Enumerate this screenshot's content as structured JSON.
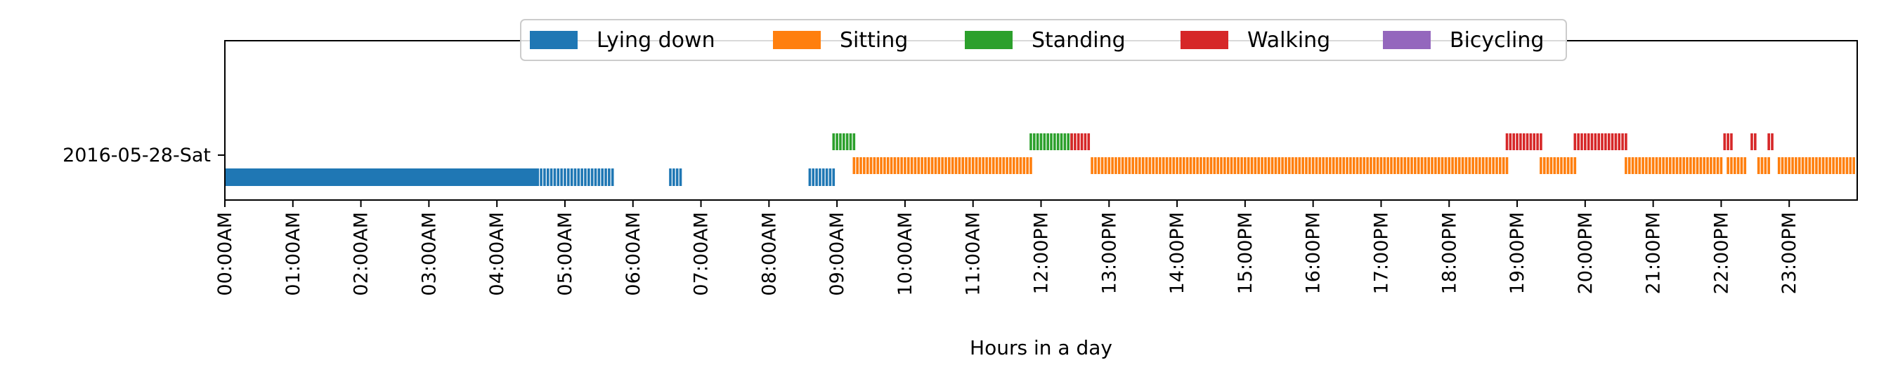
{
  "chart_data": {
    "type": "bar",
    "title": "",
    "xlabel": "Hours in a day",
    "ylabel": "",
    "y_categories": [
      "2016-05-28-Sat"
    ],
    "xlim_hours": [
      0,
      24
    ],
    "x_tick_labels": [
      "00:00AM",
      "01:00AM",
      "02:00AM",
      "03:00AM",
      "04:00AM",
      "05:00AM",
      "06:00AM",
      "07:00AM",
      "08:00AM",
      "09:00AM",
      "10:00AM",
      "11:00AM",
      "12:00PM",
      "13:00PM",
      "14:00PM",
      "15:00PM",
      "16:00PM",
      "17:00PM",
      "18:00PM",
      "19:00PM",
      "20:00PM",
      "21:00PM",
      "22:00PM",
      "23:00PM"
    ],
    "legend_placement": "upper-center",
    "grid": false,
    "series": [
      {
        "name": "Lying down",
        "color": "#1f77b4",
        "intervals": [
          [
            0.0,
            4.6
          ]
        ],
        "ticks": [
          [
            4.6,
            5.7
          ],
          [
            6.55,
            6.7
          ],
          [
            8.6,
            8.95
          ]
        ]
      },
      {
        "name": "Sitting",
        "color": "#ff7f0e",
        "intervals": [],
        "ticks": [
          [
            9.25,
            11.85
          ],
          [
            12.75,
            18.85
          ],
          [
            19.35,
            19.85
          ],
          [
            20.6,
            22.0
          ],
          [
            22.1,
            22.35
          ],
          [
            22.55,
            22.7
          ],
          [
            22.85,
            23.95
          ]
        ]
      },
      {
        "name": "Standing",
        "color": "#2ca02c",
        "intervals": [],
        "ticks": [
          [
            8.95,
            9.25
          ],
          [
            11.85,
            12.45
          ]
        ]
      },
      {
        "name": "Walking",
        "color": "#d62728",
        "intervals": [],
        "ticks": [
          [
            12.45,
            12.7
          ],
          [
            18.85,
            19.35
          ],
          [
            19.85,
            20.6
          ],
          [
            22.05,
            22.15
          ],
          [
            22.45,
            22.5
          ],
          [
            22.7,
            22.75
          ]
        ]
      },
      {
        "name": "Bicycling",
        "color": "#9467bd",
        "intervals": [],
        "ticks": []
      }
    ]
  }
}
